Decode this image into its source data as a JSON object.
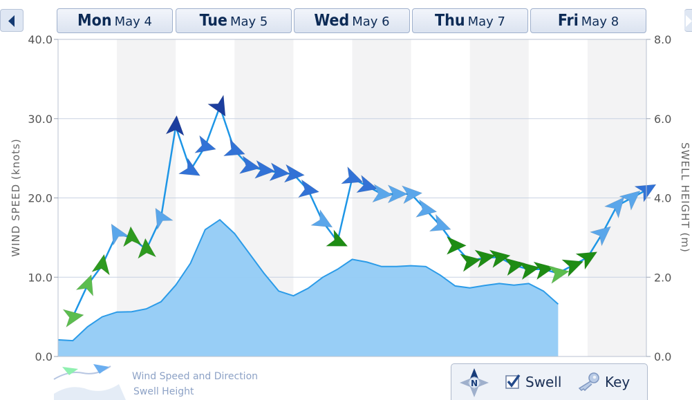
{
  "nav": {
    "prev_icon": "left-arrow-icon",
    "next_icon": "right-arrow-icon"
  },
  "days": [
    {
      "day": "Mon",
      "date": "May 4"
    },
    {
      "day": "Tue",
      "date": "May 5"
    },
    {
      "day": "Wed",
      "date": "May 6"
    },
    {
      "day": "Thu",
      "date": "May 7"
    },
    {
      "day": "Fri",
      "date": "May 8"
    }
  ],
  "legend": {
    "wind_label": "Wind Speed and Direction",
    "swell_label": "Swell Height"
  },
  "controls": {
    "compass_icon": "compass-icon",
    "compass_letter": "N",
    "swell_label": "Swell",
    "swell_checked": true,
    "key_label": "Key",
    "key_icon": "key-icon"
  },
  "chart_data": {
    "type": "line",
    "x_unit": "hours from Mon May 4 00:00",
    "left_axis": {
      "label": "WIND SPEED (knots)",
      "range": [
        0,
        40
      ],
      "ticks": [
        "0.0",
        "10.0",
        "20.0",
        "30.0",
        "40.0"
      ]
    },
    "right_axis": {
      "label": "SWELL HEIGHT (m)",
      "range": [
        0,
        8
      ],
      "ticks": [
        "0.0",
        "2.0",
        "4.0",
        "6.0",
        "8.0"
      ]
    },
    "grid": true,
    "series": [
      {
        "name": "Wind Speed",
        "unit": "knots",
        "color": "#1e96e6",
        "points": [
          [
            3,
            5
          ],
          [
            6,
            9
          ],
          [
            9,
            11.5
          ],
          [
            12,
            15.5
          ],
          [
            15,
            15
          ],
          [
            18,
            13.5
          ],
          [
            21,
            17.5
          ],
          [
            24,
            29
          ],
          [
            27,
            23.5
          ],
          [
            30,
            26.5
          ],
          [
            33,
            31.5
          ],
          [
            36,
            26
          ],
          [
            39,
            24
          ],
          [
            42,
            23.5
          ],
          [
            45,
            23.2
          ],
          [
            48,
            23
          ],
          [
            51,
            21
          ],
          [
            54,
            17
          ],
          [
            57,
            14.5
          ],
          [
            60,
            22.5
          ],
          [
            63,
            21.5
          ],
          [
            66,
            20.5
          ],
          [
            69,
            20.5
          ],
          [
            72,
            20.5
          ],
          [
            75,
            18.5
          ],
          [
            78,
            16.5
          ],
          [
            81,
            14
          ],
          [
            84,
            12
          ],
          [
            87,
            12.5
          ],
          [
            90,
            12.5
          ],
          [
            93,
            11.5
          ],
          [
            96,
            11
          ],
          [
            99,
            11
          ],
          [
            102,
            10.5
          ],
          [
            105,
            11.5
          ],
          [
            108,
            12.5
          ],
          [
            111,
            15.5
          ],
          [
            114,
            19
          ],
          [
            117,
            20
          ],
          [
            120,
            21
          ]
        ],
        "directions_deg": [
          260,
          200,
          190,
          150,
          175,
          175,
          150,
          185,
          300,
          285,
          330,
          290,
          280,
          275,
          275,
          275,
          280,
          300,
          295,
          290,
          285,
          275,
          270,
          265,
          280,
          290,
          270,
          260,
          260,
          260,
          260,
          260,
          260,
          260,
          250,
          240,
          230,
          220,
          230,
          240
        ],
        "arrow_colors": [
          "#5cbd4f",
          "#5cbd4f",
          "#2e9a1f",
          "#5aa6ea",
          "#2e9a1f",
          "#2e9a1f",
          "#5aa6ea",
          "#1c3e9e",
          "#3272d6",
          "#3272d6",
          "#1c3e9e",
          "#3272d6",
          "#3272d6",
          "#3272d6",
          "#3272d6",
          "#3272d6",
          "#3272d6",
          "#5aa6ea",
          "#1e8c14",
          "#3272d6",
          "#3272d6",
          "#5aa6ea",
          "#5aa6ea",
          "#5aa6ea",
          "#5aa6ea",
          "#5aa6ea",
          "#1e8c14",
          "#1e8c14",
          "#1e8c14",
          "#1e8c14",
          "#1e8c14",
          "#1e8c14",
          "#1e8c14",
          "#5cbd4f",
          "#1e8c14",
          "#1e8c14",
          "#5aa6ea",
          "#5aa6ea",
          "#5aa6ea",
          "#3272d6"
        ]
      },
      {
        "name": "Swell Height",
        "unit": "m",
        "color": "#92cbf6",
        "points": [
          [
            0,
            0.42
          ],
          [
            3,
            0.4
          ],
          [
            6,
            0.75
          ],
          [
            9,
            1.0
          ],
          [
            12,
            1.12
          ],
          [
            15,
            1.13
          ],
          [
            18,
            1.2
          ],
          [
            21,
            1.38
          ],
          [
            24,
            1.8
          ],
          [
            27,
            2.35
          ],
          [
            30,
            3.2
          ],
          [
            33,
            3.45
          ],
          [
            36,
            3.1
          ],
          [
            39,
            2.6
          ],
          [
            42,
            2.1
          ],
          [
            45,
            1.65
          ],
          [
            48,
            1.53
          ],
          [
            51,
            1.72
          ],
          [
            54,
            2.0
          ],
          [
            57,
            2.2
          ],
          [
            60,
            2.45
          ],
          [
            63,
            2.38
          ],
          [
            66,
            2.27
          ],
          [
            69,
            2.27
          ],
          [
            72,
            2.29
          ],
          [
            75,
            2.27
          ],
          [
            78,
            2.05
          ],
          [
            81,
            1.78
          ],
          [
            84,
            1.73
          ],
          [
            87,
            1.79
          ],
          [
            90,
            1.84
          ],
          [
            93,
            1.8
          ],
          [
            96,
            1.84
          ],
          [
            99,
            1.65
          ],
          [
            102,
            1.32
          ]
        ]
      }
    ],
    "x_range": [
      0,
      120
    ],
    "day_labels": [
      "Mon May 4",
      "Tue May 5",
      "Wed May 6",
      "Thu May 7",
      "Fri May 8"
    ]
  }
}
